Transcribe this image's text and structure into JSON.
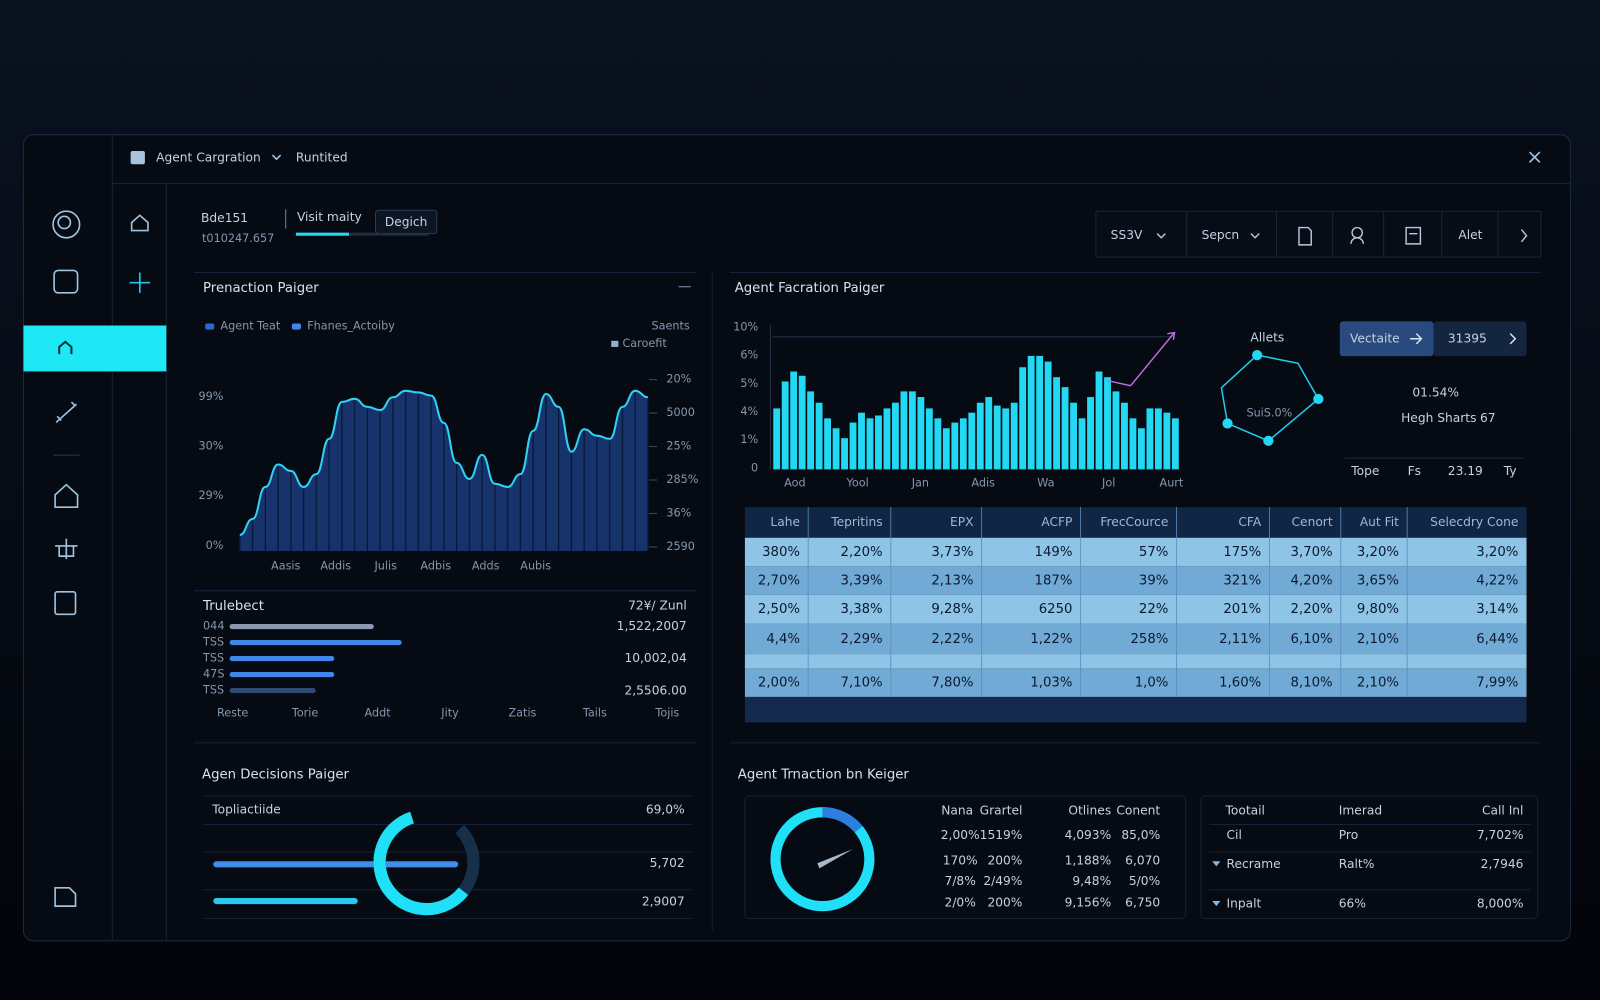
{
  "topbar": {
    "title": "Agent Cargration",
    "status": "Runtited"
  },
  "header": {
    "name": "Bde151",
    "id": "t010247.657",
    "tab": "Visit maity",
    "button": "Degich",
    "progress": 40
  },
  "toolbar": [
    "SS3V",
    "Sepcn",
    "Alet"
  ],
  "panels": {
    "transaction": {
      "title": "Prenaction Paiger",
      "legend": [
        "Agent Teat",
        "Fhanes_Actoiby"
      ],
      "right_legend": [
        "Saents",
        "Caroefit"
      ],
      "yticks": [
        "0%",
        "29%",
        "30%",
        "99%"
      ],
      "y2ticks": [
        "2590",
        "36%",
        "285%",
        "25%",
        "5000",
        "20%"
      ],
      "categories": [
        "Aasis",
        "Addis",
        "Julis",
        "Adbis",
        "Adds",
        "Aubis"
      ],
      "ylim": [
        0,
        100
      ],
      "values": [
        10,
        20,
        40,
        54,
        50,
        40,
        48,
        70,
        93,
        95,
        90,
        88,
        96,
        100,
        99,
        97,
        80,
        55,
        45,
        60,
        42,
        40,
        48,
        75,
        98,
        90,
        62,
        76,
        72,
        70,
        90,
        100,
        96
      ]
    },
    "ranking": {
      "title": "Trulebect",
      "subtitle": "72¥/ Zunl",
      "labels": [
        "044",
        "TSS",
        "TSS",
        "47S",
        "TSS"
      ],
      "xlim": [
        0,
        100
      ],
      "values": [
        62,
        74,
        45,
        45,
        37
      ],
      "amounts": [
        "1,522,2007",
        "10,002,04",
        "2,5506.00"
      ],
      "categories": [
        "Reste",
        "Torie",
        "Addt",
        "Jity",
        "Zatis",
        "Tails",
        "Tojis"
      ]
    },
    "decisions": {
      "title": "Agen Decisions Paiger",
      "row_label": "Topliactiide",
      "amounts": [
        "69,0%",
        "5,702",
        "2,9007"
      ],
      "xlim": [
        0,
        100
      ],
      "values": [
        100,
        59
      ],
      "gauge": 72
    },
    "factration": {
      "title": "Agent Facration Paiger",
      "yticks": [
        "0",
        "1%",
        "4%",
        "5%",
        "6%",
        "10%"
      ],
      "categories": [
        "Aod",
        "Yool",
        "Jan",
        "Adis",
        "Wa",
        "Jol",
        "Aurt"
      ],
      "ylim": [
        0,
        100
      ],
      "values": [
        43,
        62,
        69,
        66,
        55,
        47,
        36,
        29,
        22,
        33,
        40,
        36,
        38,
        43,
        47,
        55,
        55,
        51,
        43,
        36,
        29,
        33,
        36,
        40,
        47,
        51,
        45,
        43,
        47,
        72,
        80,
        80,
        76,
        65,
        58,
        47,
        36,
        51,
        69,
        65,
        55,
        47,
        36,
        29,
        43,
        43,
        40,
        36
      ]
    },
    "network": {
      "title": "Allets",
      "label": "SuiS.0%"
    },
    "card": {
      "button": "Vectaite",
      "count": "31395",
      "big": "01.54%",
      "caption": "Hegh Sharts",
      "caption_value": "67",
      "footer": [
        "Tope",
        "Fs",
        "23.19",
        "Ty"
      ]
    },
    "table": {
      "columns": [
        "Lahe",
        "Tepritins",
        "EPX",
        "ACFP",
        "FrecCource",
        "CFA",
        "Cenort",
        "Aut Fit",
        "Selecdry Cone"
      ],
      "rows": [
        [
          "380%",
          "2,20%",
          "3,73%",
          "149%",
          "57%",
          "175%",
          "3,70%",
          "3,20%",
          "3,20%"
        ],
        [
          "2,70%",
          "3,39%",
          "2,13%",
          "187%",
          "39%",
          "321%",
          "4,20%",
          "3,65%",
          "4,22%"
        ],
        [
          "2,50%",
          "3,38%",
          "9,28%",
          "6250",
          "22%",
          "201%",
          "2,20%",
          "9,80%",
          "3,14%"
        ],
        [
          "4,4%",
          "2,29%",
          "2,22%",
          "1,22%",
          "258%",
          "2,11%",
          "6,10%",
          "2,10%",
          "6,44%"
        ],
        [
          "2,00%",
          "7,10%",
          "7,80%",
          "1,03%",
          "1,0%",
          "1,60%",
          "8,10%",
          "2,10%",
          "7,99%"
        ]
      ]
    },
    "trnaction": {
      "title": "Agent Trnaction bn Keiger",
      "gauge": 14,
      "columns": [
        "Nana",
        "Grartel",
        "Otlines",
        "Conent"
      ],
      "rows": [
        [
          "2,00%",
          "1519%",
          "4,093%",
          "85,0%"
        ],
        [
          "170%",
          "200%",
          "1,188%",
          "6,070"
        ],
        [
          "7/8%",
          "2/49%",
          "9,48%",
          "5/0%"
        ],
        [
          "2/0%",
          "200%",
          "9,156%",
          "6,750"
        ]
      ],
      "side_columns": [
        "Tootail",
        "Imerad",
        "Call Inl"
      ],
      "side_rows": [
        [
          "Cil",
          "Pro",
          "7,702%"
        ],
        [
          "Recrame",
          "Ralt%",
          "2,7946"
        ],
        [
          "Inpalt",
          "66%",
          "8,000%"
        ]
      ]
    }
  }
}
